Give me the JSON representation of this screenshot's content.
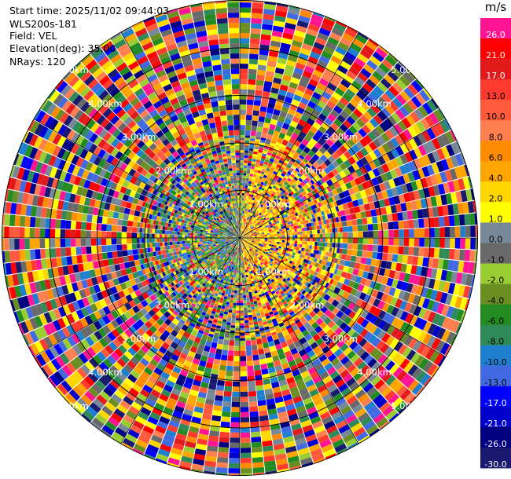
{
  "info": {
    "start_time": "Start time: 2025/11/02 09:44:03",
    "instrument": "WLS200s-181",
    "field": "Field: VEL",
    "elevation": "Elevation(deg): 35.00",
    "nrays": "NRays: 120"
  },
  "range_rings": [
    {
      "label": "1.00km",
      "km": 1
    },
    {
      "label": "2.00km",
      "km": 2
    },
    {
      "label": "3.00km",
      "km": 3
    },
    {
      "label": "4.00km",
      "km": 4
    },
    {
      "label": "5.00km",
      "km": 5
    }
  ],
  "colorbar": {
    "unit": "m/s",
    "bins": [
      {
        "label": "26.0",
        "color": "#ff1493"
      },
      {
        "label": "21.0",
        "color": "#ff0000"
      },
      {
        "label": "17.0",
        "color": "#e31a1c"
      },
      {
        "label": "13.0",
        "color": "#ff3b30"
      },
      {
        "label": "10.0",
        "color": "#ff5a3c"
      },
      {
        "label": "8.0",
        "color": "#ff7f50"
      },
      {
        "label": "6.0",
        "color": "#ff8c00"
      },
      {
        "label": "4.0",
        "color": "#ffa500"
      },
      {
        "label": "2.0",
        "color": "#ffd700"
      },
      {
        "label": "1.0",
        "color": "#ffff00"
      },
      {
        "label": "0.0",
        "color": "#778899"
      },
      {
        "label": "-1.0",
        "color": "#696969"
      },
      {
        "label": "-2.0",
        "color": "#9acd32"
      },
      {
        "label": "-4.0",
        "color": "#6b8e23"
      },
      {
        "label": "-6.0",
        "color": "#228b22"
      },
      {
        "label": "-8.0",
        "color": "#2e8b57"
      },
      {
        "label": "-10.0",
        "color": "#1e7fd0"
      },
      {
        "label": "-13.0",
        "color": "#4169e1"
      },
      {
        "label": "-17.0",
        "color": "#0000ff"
      },
      {
        "label": "-21.0",
        "color": "#0000cd"
      },
      {
        "label": "-26.0",
        "color": "#000080"
      },
      {
        "label": "-30.0",
        "color": "#191970"
      }
    ]
  }
}
